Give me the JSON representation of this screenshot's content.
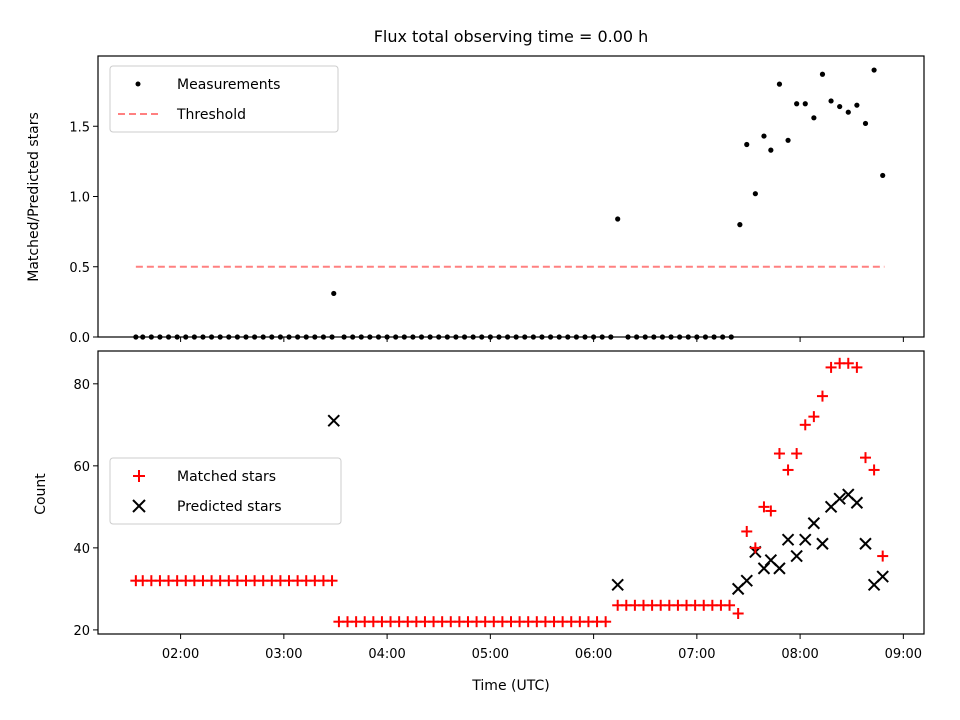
{
  "chart_data": [
    {
      "type": "scatter",
      "title": "Flux total observing time = 0.00 h",
      "xlabel": "",
      "ylabel": "Matched/Predicted stars",
      "xlim": [
        "01:12",
        "09:12"
      ],
      "ylim": [
        0,
        2.0
      ],
      "yticks": [
        0.0,
        0.5,
        1.0,
        1.5
      ],
      "ytick_labels": [
        "0.0",
        "0.5",
        "1.0",
        "1.5"
      ],
      "legend": {
        "placement": "upper-left",
        "entries": [
          {
            "label": "Measurements",
            "marker": "dot",
            "color": "#000000"
          },
          {
            "label": "Threshold",
            "marker": "dashed-line",
            "color": "#ff8080"
          }
        ]
      },
      "threshold": {
        "value": 0.5,
        "x_start": "01:34",
        "x_end": "08:49"
      },
      "series": [
        {
          "name": "Measurements",
          "color": "#000000",
          "points": [
            [
              "01:34",
              0
            ],
            [
              "01:38",
              0
            ],
            [
              "01:43",
              0
            ],
            [
              "01:48",
              0
            ],
            [
              "01:53",
              0
            ],
            [
              "01:58",
              0
            ],
            [
              "02:03",
              0
            ],
            [
              "02:08",
              0
            ],
            [
              "02:13",
              0
            ],
            [
              "02:18",
              0
            ],
            [
              "02:23",
              0
            ],
            [
              "02:28",
              0
            ],
            [
              "02:33",
              0
            ],
            [
              "02:38",
              0
            ],
            [
              "02:43",
              0
            ],
            [
              "02:48",
              0
            ],
            [
              "02:53",
              0
            ],
            [
              "02:58",
              0
            ],
            [
              "03:03",
              0
            ],
            [
              "03:08",
              0
            ],
            [
              "03:13",
              0
            ],
            [
              "03:18",
              0
            ],
            [
              "03:23",
              0
            ],
            [
              "03:28",
              0
            ],
            [
              "03:29",
              0.31
            ],
            [
              "03:35",
              0
            ],
            [
              "03:40",
              0
            ],
            [
              "03:45",
              0
            ],
            [
              "03:50",
              0
            ],
            [
              "03:55",
              0
            ],
            [
              "04:00",
              0
            ],
            [
              "04:05",
              0
            ],
            [
              "04:10",
              0
            ],
            [
              "04:15",
              0
            ],
            [
              "04:20",
              0
            ],
            [
              "04:25",
              0
            ],
            [
              "04:30",
              0
            ],
            [
              "04:35",
              0
            ],
            [
              "04:40",
              0
            ],
            [
              "04:45",
              0
            ],
            [
              "04:50",
              0
            ],
            [
              "04:55",
              0
            ],
            [
              "05:00",
              0
            ],
            [
              "05:05",
              0
            ],
            [
              "05:10",
              0
            ],
            [
              "05:15",
              0
            ],
            [
              "05:20",
              0
            ],
            [
              "05:25",
              0
            ],
            [
              "05:30",
              0
            ],
            [
              "05:35",
              0
            ],
            [
              "05:40",
              0
            ],
            [
              "05:45",
              0
            ],
            [
              "05:50",
              0
            ],
            [
              "05:55",
              0
            ],
            [
              "06:00",
              0
            ],
            [
              "06:05",
              0
            ],
            [
              "06:10",
              0
            ],
            [
              "06:14",
              0.84
            ],
            [
              "06:20",
              0
            ],
            [
              "06:25",
              0
            ],
            [
              "06:30",
              0
            ],
            [
              "06:35",
              0
            ],
            [
              "06:40",
              0
            ],
            [
              "06:45",
              0
            ],
            [
              "06:50",
              0
            ],
            [
              "06:55",
              0
            ],
            [
              "07:00",
              0
            ],
            [
              "07:05",
              0
            ],
            [
              "07:10",
              0
            ],
            [
              "07:15",
              0
            ],
            [
              "07:20",
              0
            ],
            [
              "07:25",
              0.8
            ],
            [
              "07:29",
              1.37
            ],
            [
              "07:34",
              1.02
            ],
            [
              "07:39",
              1.43
            ],
            [
              "07:43",
              1.33
            ],
            [
              "07:48",
              1.8
            ],
            [
              "07:53",
              1.4
            ],
            [
              "07:58",
              1.66
            ],
            [
              "08:03",
              1.66
            ],
            [
              "08:08",
              1.56
            ],
            [
              "08:13",
              1.87
            ],
            [
              "08:18",
              1.68
            ],
            [
              "08:23",
              1.64
            ],
            [
              "08:28",
              1.6
            ],
            [
              "08:33",
              1.65
            ],
            [
              "08:38",
              1.52
            ],
            [
              "08:43",
              1.9
            ],
            [
              "08:48",
              1.15
            ]
          ]
        }
      ]
    },
    {
      "type": "scatter",
      "title": "",
      "xlabel": "Time (UTC)",
      "ylabel": "Count",
      "xlim": [
        "01:12",
        "09:12"
      ],
      "ylim": [
        19,
        88
      ],
      "yticks": [
        20,
        40,
        60,
        80
      ],
      "ytick_labels": [
        "20",
        "40",
        "60",
        "80"
      ],
      "xticks": [
        "02:00",
        "03:00",
        "04:00",
        "05:00",
        "06:00",
        "07:00",
        "08:00",
        "09:00"
      ],
      "legend": {
        "placement": "center-left",
        "entries": [
          {
            "label": "Matched stars",
            "marker": "plus",
            "color": "#ff0000"
          },
          {
            "label": "Predicted stars",
            "marker": "x",
            "color": "#000000"
          }
        ]
      },
      "series": [
        {
          "name": "Matched stars",
          "color": "#ff0000",
          "marker": "plus",
          "points": [
            [
              "01:34",
              32
            ],
            [
              "01:38",
              32
            ],
            [
              "01:43",
              32
            ],
            [
              "01:48",
              32
            ],
            [
              "01:53",
              32
            ],
            [
              "01:58",
              32
            ],
            [
              "02:03",
              32
            ],
            [
              "02:08",
              32
            ],
            [
              "02:13",
              32
            ],
            [
              "02:18",
              32
            ],
            [
              "02:23",
              32
            ],
            [
              "02:28",
              32
            ],
            [
              "02:33",
              32
            ],
            [
              "02:38",
              32
            ],
            [
              "02:43",
              32
            ],
            [
              "02:48",
              32
            ],
            [
              "02:53",
              32
            ],
            [
              "02:58",
              32
            ],
            [
              "03:03",
              32
            ],
            [
              "03:08",
              32
            ],
            [
              "03:13",
              32
            ],
            [
              "03:18",
              32
            ],
            [
              "03:23",
              32
            ],
            [
              "03:28",
              32
            ],
            [
              "03:32",
              22
            ],
            [
              "03:37",
              22
            ],
            [
              "03:42",
              22
            ],
            [
              "03:47",
              22
            ],
            [
              "03:52",
              22
            ],
            [
              "03:57",
              22
            ],
            [
              "04:02",
              22
            ],
            [
              "04:07",
              22
            ],
            [
              "04:12",
              22
            ],
            [
              "04:17",
              22
            ],
            [
              "04:22",
              22
            ],
            [
              "04:27",
              22
            ],
            [
              "04:32",
              22
            ],
            [
              "04:37",
              22
            ],
            [
              "04:42",
              22
            ],
            [
              "04:47",
              22
            ],
            [
              "04:52",
              22
            ],
            [
              "04:57",
              22
            ],
            [
              "05:02",
              22
            ],
            [
              "05:07",
              22
            ],
            [
              "05:12",
              22
            ],
            [
              "05:17",
              22
            ],
            [
              "05:22",
              22
            ],
            [
              "05:27",
              22
            ],
            [
              "05:32",
              22
            ],
            [
              "05:37",
              22
            ],
            [
              "05:42",
              22
            ],
            [
              "05:47",
              22
            ],
            [
              "05:52",
              22
            ],
            [
              "05:57",
              22
            ],
            [
              "06:02",
              22
            ],
            [
              "06:07",
              22
            ],
            [
              "06:14",
              26
            ],
            [
              "06:19",
              26
            ],
            [
              "06:24",
              26
            ],
            [
              "06:29",
              26
            ],
            [
              "06:34",
              26
            ],
            [
              "06:39",
              26
            ],
            [
              "06:44",
              26
            ],
            [
              "06:49",
              26
            ],
            [
              "06:54",
              26
            ],
            [
              "06:59",
              26
            ],
            [
              "07:04",
              26
            ],
            [
              "07:09",
              26
            ],
            [
              "07:14",
              26
            ],
            [
              "07:19",
              26
            ],
            [
              "07:24",
              24
            ],
            [
              "07:29",
              44
            ],
            [
              "07:34",
              40
            ],
            [
              "07:39",
              50
            ],
            [
              "07:43",
              49
            ],
            [
              "07:48",
              63
            ],
            [
              "07:53",
              59
            ],
            [
              "07:58",
              63
            ],
            [
              "08:03",
              70
            ],
            [
              "08:08",
              72
            ],
            [
              "08:13",
              77
            ],
            [
              "08:18",
              84
            ],
            [
              "08:23",
              85
            ],
            [
              "08:28",
              85
            ],
            [
              "08:33",
              84
            ],
            [
              "08:38",
              62
            ],
            [
              "08:43",
              59
            ],
            [
              "08:48",
              38
            ]
          ]
        },
        {
          "name": "Predicted stars",
          "color": "#000000",
          "marker": "x",
          "points": [
            [
              "03:29",
              71
            ],
            [
              "06:14",
              31
            ],
            [
              "07:24",
              30
            ],
            [
              "07:29",
              32
            ],
            [
              "07:34",
              39
            ],
            [
              "07:39",
              35
            ],
            [
              "07:43",
              37
            ],
            [
              "07:48",
              35
            ],
            [
              "07:53",
              42
            ],
            [
              "07:58",
              38
            ],
            [
              "08:03",
              42
            ],
            [
              "08:08",
              46
            ],
            [
              "08:13",
              41
            ],
            [
              "08:18",
              50
            ],
            [
              "08:23",
              52
            ],
            [
              "08:28",
              53
            ],
            [
              "08:33",
              51
            ],
            [
              "08:38",
              41
            ],
            [
              "08:43",
              31
            ],
            [
              "08:48",
              33
            ]
          ]
        }
      ]
    }
  ]
}
